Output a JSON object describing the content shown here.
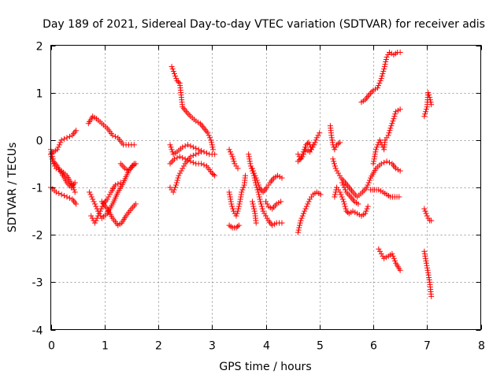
{
  "chart_data": {
    "type": "scatter",
    "title": "Day 189 of 2021, Sidereal Day-to-day VTEC variation (SDTVAR) for receiver adis",
    "xlabel": "GPS time / hours",
    "ylabel": "SDTVAR / TECUs",
    "xlim": [
      0,
      8
    ],
    "ylim": [
      -4,
      2
    ],
    "xticks": [
      "0",
      "1",
      "2",
      "3",
      "4",
      "5",
      "6",
      "7",
      "8"
    ],
    "yticks": [
      "-4",
      "-3",
      "-2",
      "-1",
      "0",
      "1",
      "2"
    ],
    "grid": true,
    "marker": "plus",
    "marker_color": "#ff0000",
    "series_tracks": [
      [
        [
          0.0,
          -0.3
        ],
        [
          0.05,
          -0.25
        ],
        [
          0.12,
          -0.2
        ],
        [
          0.2,
          0.0
        ],
        [
          0.3,
          0.05
        ],
        [
          0.4,
          0.1
        ],
        [
          0.47,
          0.2
        ]
      ],
      [
        [
          0.0,
          -0.3
        ],
        [
          0.05,
          -0.5
        ],
        [
          0.1,
          -0.6
        ],
        [
          0.2,
          -0.65
        ],
        [
          0.3,
          -0.75
        ],
        [
          0.4,
          -0.95
        ],
        [
          0.45,
          -1.1
        ]
      ],
      [
        [
          0.0,
          -1.0
        ],
        [
          0.1,
          -1.1
        ],
        [
          0.2,
          -1.15
        ],
        [
          0.3,
          -1.2
        ],
        [
          0.4,
          -1.25
        ],
        [
          0.47,
          -1.35
        ]
      ],
      [
        [
          0.0,
          -0.2
        ],
        [
          0.05,
          -0.45
        ],
        [
          0.12,
          -0.55
        ],
        [
          0.2,
          -0.7
        ],
        [
          0.3,
          -0.9
        ],
        [
          0.38,
          -1.0
        ],
        [
          0.45,
          -0.9
        ]
      ],
      [
        [
          0.7,
          0.35
        ],
        [
          0.78,
          0.5
        ],
        [
          0.85,
          0.45
        ],
        [
          0.95,
          0.35
        ],
        [
          1.05,
          0.25
        ],
        [
          1.15,
          0.1
        ],
        [
          1.25,
          0.05
        ],
        [
          1.35,
          -0.1
        ],
        [
          1.45,
          -0.1
        ],
        [
          1.55,
          -0.1
        ]
      ],
      [
        [
          0.72,
          -1.1
        ],
        [
          0.8,
          -1.3
        ],
        [
          0.88,
          -1.5
        ],
        [
          0.95,
          -1.65
        ],
        [
          1.05,
          -1.55
        ],
        [
          1.15,
          -1.35
        ],
        [
          1.25,
          -1.1
        ],
        [
          1.35,
          -0.9
        ],
        [
          1.45,
          -0.65
        ],
        [
          1.55,
          -0.5
        ]
      ],
      [
        [
          0.75,
          -1.6
        ],
        [
          0.82,
          -1.75
        ],
        [
          0.9,
          -1.55
        ],
        [
          0.98,
          -1.35
        ],
        [
          1.05,
          -1.25
        ],
        [
          1.12,
          -1.1
        ],
        [
          1.2,
          -0.95
        ],
        [
          1.3,
          -0.9
        ]
      ],
      [
        [
          0.95,
          -1.3
        ],
        [
          1.05,
          -1.45
        ],
        [
          1.15,
          -1.65
        ],
        [
          1.25,
          -1.8
        ],
        [
          1.32,
          -1.75
        ],
        [
          1.4,
          -1.6
        ],
        [
          1.5,
          -1.45
        ],
        [
          1.58,
          -1.35
        ]
      ],
      [
        [
          1.3,
          -0.5
        ],
        [
          1.38,
          -0.6
        ],
        [
          1.45,
          -0.65
        ],
        [
          1.52,
          -0.55
        ],
        [
          1.58,
          -0.5
        ]
      ],
      [
        [
          2.25,
          1.55
        ],
        [
          2.3,
          1.4
        ],
        [
          2.35,
          1.25
        ],
        [
          2.4,
          1.2
        ],
        [
          2.45,
          0.7
        ],
        [
          2.52,
          0.6
        ],
        [
          2.6,
          0.5
        ],
        [
          2.7,
          0.4
        ],
        [
          2.78,
          0.35
        ],
        [
          2.85,
          0.25
        ],
        [
          2.92,
          0.15
        ],
        [
          2.98,
          0.0
        ],
        [
          3.02,
          -0.2
        ]
      ],
      [
        [
          2.22,
          -0.1
        ],
        [
          2.28,
          -0.3
        ],
        [
          2.35,
          -0.25
        ],
        [
          2.45,
          -0.15
        ],
        [
          2.55,
          -0.1
        ],
        [
          2.65,
          -0.15
        ],
        [
          2.75,
          -0.2
        ],
        [
          2.85,
          -0.25
        ],
        [
          2.95,
          -0.3
        ],
        [
          3.05,
          -0.3
        ]
      ],
      [
        [
          2.22,
          -0.5
        ],
        [
          2.3,
          -0.4
        ],
        [
          2.4,
          -0.35
        ],
        [
          2.5,
          -0.4
        ],
        [
          2.6,
          -0.45
        ],
        [
          2.7,
          -0.5
        ],
        [
          2.8,
          -0.5
        ],
        [
          2.9,
          -0.55
        ],
        [
          3.0,
          -0.7
        ],
        [
          3.05,
          -0.75
        ]
      ],
      [
        [
          2.22,
          -1.0
        ],
        [
          2.28,
          -1.1
        ],
        [
          2.33,
          -0.95
        ],
        [
          2.38,
          -0.75
        ],
        [
          2.45,
          -0.6
        ],
        [
          2.5,
          -0.5
        ],
        [
          2.6,
          -0.35
        ],
        [
          2.7,
          -0.3
        ],
        [
          2.8,
          -0.25
        ]
      ],
      [
        [
          3.32,
          -0.2
        ],
        [
          3.38,
          -0.35
        ],
        [
          3.42,
          -0.5
        ],
        [
          3.48,
          -0.6
        ]
      ],
      [
        [
          3.32,
          -1.1
        ],
        [
          3.36,
          -1.35
        ],
        [
          3.4,
          -1.5
        ],
        [
          3.45,
          -1.6
        ],
        [
          3.48,
          -1.5
        ],
        [
          3.52,
          -1.3
        ],
        [
          3.55,
          -1.1
        ],
        [
          3.6,
          -0.95
        ],
        [
          3.62,
          -0.75
        ]
      ],
      [
        [
          3.32,
          -1.8
        ],
        [
          3.38,
          -1.85
        ],
        [
          3.45,
          -1.85
        ],
        [
          3.5,
          -1.8
        ]
      ],
      [
        [
          3.68,
          -0.3
        ],
        [
          3.72,
          -0.55
        ],
        [
          3.78,
          -0.75
        ],
        [
          3.82,
          -0.95
        ],
        [
          3.86,
          -1.1
        ],
        [
          3.9,
          -1.3
        ],
        [
          3.95,
          -1.5
        ],
        [
          4.0,
          -1.6
        ],
        [
          4.05,
          -1.7
        ],
        [
          4.12,
          -1.8
        ],
        [
          4.2,
          -1.75
        ],
        [
          4.3,
          -1.75
        ]
      ],
      [
        [
          3.75,
          -1.3
        ],
        [
          3.8,
          -1.55
        ],
        [
          3.82,
          -1.75
        ]
      ],
      [
        [
          3.75,
          -0.6
        ],
        [
          3.82,
          -0.8
        ],
        [
          3.88,
          -1.0
        ],
        [
          3.95,
          -1.1
        ],
        [
          4.02,
          -1.0
        ],
        [
          4.08,
          -0.9
        ],
        [
          4.15,
          -0.8
        ],
        [
          4.22,
          -0.75
        ],
        [
          4.3,
          -0.8
        ]
      ],
      [
        [
          4.0,
          -1.3
        ],
        [
          4.05,
          -1.4
        ],
        [
          4.12,
          -1.45
        ],
        [
          4.2,
          -1.35
        ],
        [
          4.28,
          -1.3
        ]
      ],
      [
        [
          4.6,
          -1.95
        ],
        [
          4.65,
          -1.7
        ],
        [
          4.72,
          -1.5
        ],
        [
          4.78,
          -1.35
        ],
        [
          4.82,
          -1.25
        ],
        [
          4.88,
          -1.15
        ],
        [
          4.95,
          -1.1
        ],
        [
          5.02,
          -1.15
        ]
      ],
      [
        [
          4.6,
          -0.3
        ],
        [
          4.65,
          -0.4
        ],
        [
          4.7,
          -0.25
        ],
        [
          4.75,
          -0.1
        ],
        [
          4.8,
          -0.05
        ],
        [
          4.85,
          -0.2
        ],
        [
          4.9,
          -0.1
        ],
        [
          4.95,
          0.05
        ],
        [
          5.0,
          0.15
        ]
      ],
      [
        [
          4.6,
          -0.45
        ],
        [
          4.68,
          -0.35
        ],
        [
          4.75,
          -0.2
        ],
        [
          4.82,
          -0.25
        ],
        [
          4.88,
          -0.1
        ]
      ],
      [
        [
          5.2,
          0.3
        ],
        [
          5.22,
          0.1
        ],
        [
          5.25,
          -0.1
        ],
        [
          5.28,
          -0.2
        ],
        [
          5.32,
          -0.1
        ],
        [
          5.38,
          -0.05
        ]
      ],
      [
        [
          5.25,
          -0.4
        ],
        [
          5.3,
          -0.6
        ],
        [
          5.35,
          -0.7
        ],
        [
          5.4,
          -0.8
        ],
        [
          5.48,
          -0.9
        ],
        [
          5.55,
          -1.0
        ],
        [
          5.62,
          -1.1
        ],
        [
          5.7,
          -1.2
        ],
        [
          5.8,
          -1.1
        ],
        [
          5.88,
          -1.0
        ],
        [
          5.95,
          -0.8
        ],
        [
          6.05,
          -0.6
        ],
        [
          6.15,
          -0.5
        ],
        [
          6.25,
          -0.45
        ],
        [
          6.35,
          -0.5
        ],
        [
          6.42,
          -0.6
        ],
        [
          6.5,
          -0.65
        ]
      ],
      [
        [
          5.28,
          -1.2
        ],
        [
          5.32,
          -1.0
        ],
        [
          5.38,
          -1.1
        ],
        [
          5.45,
          -1.3
        ],
        [
          5.5,
          -1.5
        ],
        [
          5.55,
          -1.55
        ],
        [
          5.62,
          -1.5
        ],
        [
          5.7,
          -1.55
        ],
        [
          5.78,
          -1.6
        ],
        [
          5.85,
          -1.55
        ],
        [
          5.9,
          -1.4
        ]
      ],
      [
        [
          5.42,
          -0.9
        ],
        [
          5.5,
          -1.1
        ],
        [
          5.58,
          -1.2
        ],
        [
          5.65,
          -1.3
        ],
        [
          5.72,
          -1.35
        ]
      ],
      [
        [
          5.78,
          0.8
        ],
        [
          5.85,
          0.85
        ],
        [
          5.92,
          0.95
        ],
        [
          6.0,
          1.05
        ],
        [
          6.08,
          1.1
        ],
        [
          6.15,
          1.3
        ],
        [
          6.2,
          1.5
        ],
        [
          6.25,
          1.75
        ],
        [
          6.3,
          1.85
        ],
        [
          6.38,
          1.8
        ],
        [
          6.45,
          1.85
        ],
        [
          6.5,
          1.85
        ]
      ],
      [
        [
          5.95,
          -1.05
        ],
        [
          6.02,
          -1.05
        ],
        [
          6.1,
          -1.05
        ],
        [
          6.18,
          -1.1
        ],
        [
          6.25,
          -1.15
        ],
        [
          6.32,
          -1.2
        ],
        [
          6.4,
          -1.2
        ],
        [
          6.48,
          -1.2
        ]
      ],
      [
        [
          6.0,
          -0.5
        ],
        [
          6.05,
          -0.2
        ],
        [
          6.12,
          0.0
        ],
        [
          6.2,
          -0.2
        ],
        [
          6.22,
          0.0
        ],
        [
          6.28,
          0.1
        ],
        [
          6.32,
          0.25
        ],
        [
          6.38,
          0.45
        ],
        [
          6.42,
          0.6
        ],
        [
          6.5,
          0.65
        ]
      ],
      [
        [
          6.1,
          -2.3
        ],
        [
          6.15,
          -2.4
        ],
        [
          6.2,
          -2.5
        ],
        [
          6.28,
          -2.45
        ],
        [
          6.35,
          -2.4
        ],
        [
          6.42,
          -2.6
        ],
        [
          6.5,
          -2.75
        ]
      ],
      [
        [
          6.95,
          0.5
        ],
        [
          7.0,
          0.7
        ],
        [
          7.02,
          1.0
        ],
        [
          7.05,
          0.9
        ],
        [
          7.08,
          0.75
        ]
      ],
      [
        [
          6.95,
          -1.45
        ],
        [
          7.0,
          -1.6
        ],
        [
          7.05,
          -1.7
        ],
        [
          7.08,
          -1.7
        ]
      ],
      [
        [
          6.95,
          -2.35
        ],
        [
          6.98,
          -2.55
        ],
        [
          7.02,
          -2.8
        ],
        [
          7.05,
          -3.0
        ],
        [
          7.08,
          -3.3
        ]
      ]
    ]
  }
}
